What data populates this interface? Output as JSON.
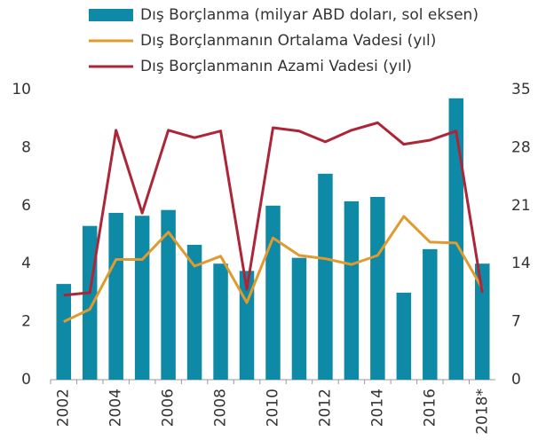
{
  "chart_data": {
    "type": "bar-line",
    "categories": [
      "2002",
      null,
      "2004",
      null,
      "2006",
      null,
      "2008",
      null,
      "2010",
      null,
      "2012",
      null,
      "2014",
      null,
      "2016",
      null,
      "2018*"
    ],
    "series": [
      {
        "name": "Dış Borçlanma (milyar ABD doları, sol eksen)",
        "type": "bar",
        "color": "#0e8aa6",
        "axis": "y",
        "values": [
          3.3,
          5.3,
          5.75,
          5.65,
          5.85,
          4.65,
          4.0,
          3.75,
          6.0,
          4.2,
          7.1,
          6.15,
          6.3,
          3.0,
          4.5,
          9.7,
          4.0
        ]
      },
      {
        "name": "Dış Borçlanmanın Ortalama Vadesi (yıl)",
        "type": "line",
        "color": "#e09a2e",
        "axis": "y2",
        "values": [
          7.0,
          8.5,
          14.5,
          14.5,
          17.8,
          13.7,
          14.9,
          9.3,
          17.1,
          15.0,
          14.6,
          13.9,
          15.0,
          19.7,
          16.6,
          16.5,
          11.0
        ]
      },
      {
        "name": "Dış Borçlanmanın Azami Vadesi (yıl)",
        "type": "line",
        "color": "#ac2538",
        "axis": "y2",
        "values": [
          10.2,
          10.5,
          30.1,
          20.1,
          30.1,
          29.2,
          30.0,
          10.9,
          30.4,
          30.0,
          28.7,
          30.1,
          31.0,
          28.4,
          28.9,
          30.0,
          10.5
        ]
      }
    ],
    "ylim": [
      0,
      10
    ],
    "yticks": [
      0,
      2,
      4,
      6,
      8,
      10
    ],
    "y2lim": [
      0,
      35
    ],
    "y2ticks": [
      0,
      7,
      14,
      21,
      28,
      35
    ]
  }
}
